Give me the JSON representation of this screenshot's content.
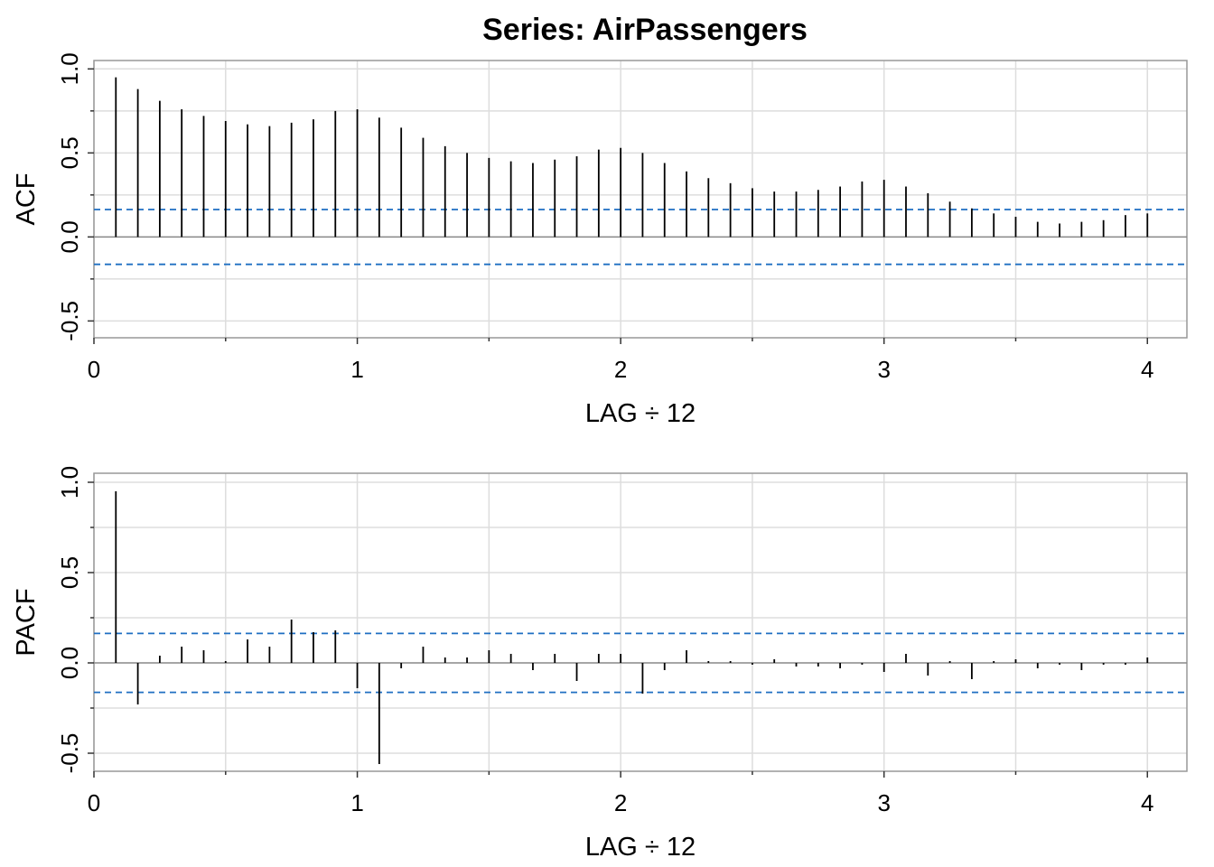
{
  "title": "Series:  AirPassengers",
  "colors": {
    "bar": "#000000",
    "ci_line": "#1f6fc2",
    "grid": "#dddddd",
    "zero_line": "#888888",
    "frame": "#999999"
  },
  "chart_data": [
    {
      "type": "bar",
      "name": "acf",
      "ylabel": "ACF",
      "xlabel": "LAG ÷ 12",
      "xlim": [
        0,
        4.15
      ],
      "ylim": [
        -0.6,
        1.05
      ],
      "x_ticks": [
        "0",
        "1",
        "2",
        "3",
        "4"
      ],
      "y_ticks": [
        "-0.5",
        "0.0",
        "0.5",
        "1.0"
      ],
      "ci": [
        0.163,
        -0.163
      ],
      "lags": [
        0.0833,
        0.1667,
        0.25,
        0.3333,
        0.4167,
        0.5,
        0.5833,
        0.6667,
        0.75,
        0.8333,
        0.9167,
        1.0,
        1.0833,
        1.1667,
        1.25,
        1.3333,
        1.4167,
        1.5,
        1.5833,
        1.6667,
        1.75,
        1.8333,
        1.9167,
        2.0,
        2.0833,
        2.1667,
        2.25,
        2.3333,
        2.4167,
        2.5,
        2.5833,
        2.6667,
        2.75,
        2.8333,
        2.9167,
        3.0,
        3.0833,
        3.1667,
        3.25,
        3.3333,
        3.4167,
        3.5,
        3.5833,
        3.6667,
        3.75,
        3.8333,
        3.9167,
        4.0
      ],
      "values": [
        0.95,
        0.88,
        0.81,
        0.76,
        0.72,
        0.69,
        0.67,
        0.66,
        0.68,
        0.7,
        0.75,
        0.76,
        0.71,
        0.65,
        0.59,
        0.54,
        0.5,
        0.47,
        0.45,
        0.44,
        0.46,
        0.48,
        0.52,
        0.53,
        0.5,
        0.44,
        0.39,
        0.35,
        0.32,
        0.29,
        0.27,
        0.27,
        0.28,
        0.3,
        0.33,
        0.34,
        0.3,
        0.26,
        0.21,
        0.17,
        0.14,
        0.12,
        0.09,
        0.08,
        0.09,
        0.1,
        0.13,
        0.14
      ]
    },
    {
      "type": "bar",
      "name": "pacf",
      "ylabel": "PACF",
      "xlabel": "LAG ÷ 12",
      "xlim": [
        0,
        4.15
      ],
      "ylim": [
        -0.6,
        1.05
      ],
      "x_ticks": [
        "0",
        "1",
        "2",
        "3",
        "4"
      ],
      "y_ticks": [
        "-0.5",
        "0.0",
        "0.5",
        "1.0"
      ],
      "ci": [
        0.163,
        -0.163
      ],
      "lags": [
        0.0833,
        0.1667,
        0.25,
        0.3333,
        0.4167,
        0.5,
        0.5833,
        0.6667,
        0.75,
        0.8333,
        0.9167,
        1.0,
        1.0833,
        1.1667,
        1.25,
        1.3333,
        1.4167,
        1.5,
        1.5833,
        1.6667,
        1.75,
        1.8333,
        1.9167,
        2.0,
        2.0833,
        2.1667,
        2.25,
        2.3333,
        2.4167,
        2.5,
        2.5833,
        2.6667,
        2.75,
        2.8333,
        2.9167,
        3.0,
        3.0833,
        3.1667,
        3.25,
        3.3333,
        3.4167,
        3.5,
        3.5833,
        3.6667,
        3.75,
        3.8333,
        3.9167,
        4.0
      ],
      "values": [
        0.95,
        -0.23,
        0.04,
        0.09,
        0.07,
        0.01,
        0.13,
        0.09,
        0.24,
        0.17,
        0.18,
        -0.14,
        -0.56,
        -0.03,
        0.09,
        0.03,
        0.03,
        0.07,
        0.05,
        -0.04,
        0.05,
        -0.1,
        0.05,
        0.05,
        -0.17,
        -0.04,
        0.07,
        0.01,
        0.01,
        -0.01,
        0.02,
        -0.02,
        -0.02,
        -0.03,
        -0.01,
        -0.05,
        0.05,
        -0.07,
        0.01,
        -0.09,
        0.01,
        0.02,
        -0.03,
        -0.01,
        -0.04,
        -0.01,
        -0.01,
        0.03
      ]
    }
  ]
}
